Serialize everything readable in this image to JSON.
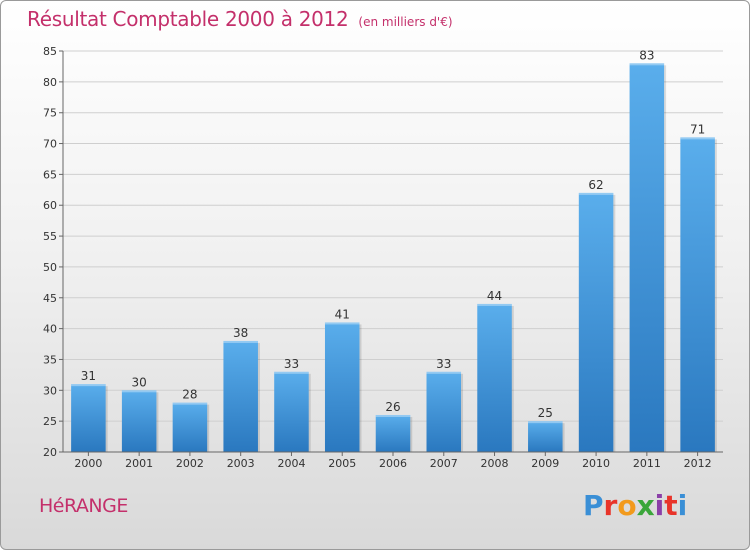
{
  "header": {
    "title": "Résultat Comptable 2000 à 2012",
    "unit": "(en milliers d'€)"
  },
  "commune": "HéRANGE",
  "logo": {
    "text": "Proxiti",
    "letter_colors": [
      "#3a8fd6",
      "#e8342a",
      "#f29a1c",
      "#3aa63a",
      "#8b3fa8",
      "#e8342a",
      "#3a8fd6"
    ]
  },
  "colors": {
    "bar_top": "#5aaeec",
    "bar_bottom": "#2a78bf",
    "title": "#c4306b"
  },
  "chart_data": {
    "type": "bar",
    "categories": [
      "2000",
      "2001",
      "2002",
      "2003",
      "2004",
      "2005",
      "2006",
      "2007",
      "2008",
      "2009",
      "2010",
      "2011",
      "2012"
    ],
    "values": [
      31,
      30,
      28,
      38,
      33,
      41,
      26,
      33,
      44,
      25,
      62,
      83,
      71
    ],
    "title": "Résultat Comptable 2000 à 2012",
    "xlabel": "",
    "ylabel": "",
    "ylim": [
      20,
      85
    ],
    "yticks": [
      20,
      25,
      30,
      35,
      40,
      45,
      50,
      55,
      60,
      65,
      70,
      75,
      80,
      85
    ],
    "grid": true,
    "data_labels": true
  }
}
